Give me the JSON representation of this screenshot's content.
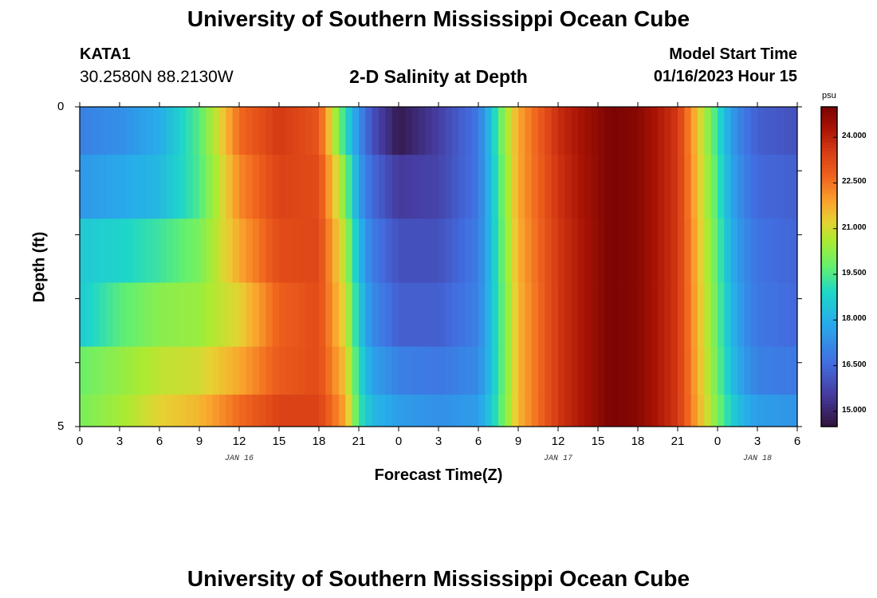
{
  "header": {
    "title": "University of Southern Mississippi Ocean Cube",
    "station_id": "KATA1",
    "coordinates": "30.2580N  88.2130W",
    "subtitle": "2-D Salinity at Depth",
    "model_start_label": "Model Start Time",
    "model_start_value": "01/16/2023 Hour 15"
  },
  "footer": {
    "title": "University of Southern Mississippi Ocean Cube"
  },
  "chart_data": {
    "type": "heatmap",
    "title": "2-D Salinity at Depth",
    "xlabel": "Forecast Time(Z)",
    "ylabel": "Depth (ft)",
    "x_hours_from_jan16_00z": [
      0,
      54
    ],
    "ylim": [
      0,
      5
    ],
    "y_tick_labels": [
      "0",
      "5"
    ],
    "x_tick_labels": [
      "0",
      "3",
      "6",
      "9",
      "12",
      "15",
      "18",
      "21",
      "0",
      "3",
      "6",
      "9",
      "12",
      "15",
      "18",
      "21",
      "0",
      "3",
      "6"
    ],
    "date_labels": [
      {
        "label": "JAN 16",
        "hour": 12
      },
      {
        "label": "JAN 17",
        "hour": 36
      },
      {
        "label": "JAN 18",
        "hour": 51
      }
    ],
    "colorbar": {
      "unit": "psu",
      "range": [
        14.5,
        25.0
      ],
      "tick_values": [
        15.0,
        16.5,
        18.0,
        19.5,
        21.0,
        22.5,
        24.0
      ],
      "tick_labels": [
        "15.000",
        "16.500",
        "18.000",
        "19.500",
        "21.000",
        "22.500",
        "24.000"
      ]
    },
    "depth_layers_ft": [
      0.25,
      1.25,
      2.25,
      3.25,
      4.25,
      4.75
    ],
    "time_knots_hours": [
      0,
      3,
      6,
      9,
      12,
      15,
      18,
      20,
      21,
      22,
      24,
      27,
      30,
      31,
      32,
      33,
      36,
      40,
      42,
      45,
      48,
      49,
      50,
      51,
      54
    ],
    "salinity_psu": [
      [
        17.0,
        17.3,
        17.9,
        19.6,
        22.6,
        23.6,
        23.0,
        19.0,
        17.3,
        16.0,
        14.7,
        15.6,
        16.8,
        18.5,
        20.4,
        21.8,
        23.8,
        25.0,
        24.8,
        23.6,
        19.2,
        17.6,
        16.8,
        16.3,
        16.0
      ],
      [
        17.5,
        17.8,
        18.2,
        19.5,
        22.2,
        23.4,
        23.2,
        20.0,
        17.6,
        16.5,
        15.5,
        15.7,
        16.8,
        18.4,
        20.2,
        21.8,
        23.7,
        25.0,
        24.8,
        23.6,
        19.4,
        17.8,
        17.0,
        16.5,
        16.3
      ],
      [
        18.6,
        18.8,
        19.3,
        20.0,
        21.8,
        23.2,
        23.3,
        20.6,
        18.2,
        16.9,
        16.0,
        16.0,
        16.9,
        18.4,
        20.1,
        21.7,
        23.6,
        25.0,
        24.8,
        23.6,
        19.6,
        18.0,
        17.2,
        16.7,
        16.4
      ],
      [
        18.6,
        19.6,
        20.2,
        20.4,
        21.2,
        22.8,
        23.2,
        21.0,
        18.6,
        17.2,
        16.3,
        16.3,
        17.0,
        18.4,
        20.0,
        21.6,
        23.6,
        25.0,
        24.8,
        23.6,
        19.7,
        18.2,
        17.3,
        16.8,
        16.5
      ],
      [
        19.8,
        20.3,
        20.8,
        21.0,
        21.8,
        22.9,
        23.2,
        21.4,
        19.0,
        17.7,
        17.0,
        16.8,
        17.2,
        18.4,
        20.0,
        21.6,
        23.6,
        25.0,
        24.8,
        23.6,
        19.8,
        18.4,
        17.5,
        17.0,
        16.8
      ],
      [
        20.0,
        20.5,
        21.2,
        21.6,
        22.6,
        23.4,
        23.4,
        21.8,
        19.3,
        18.2,
        17.6,
        17.3,
        17.6,
        18.6,
        20.1,
        21.6,
        23.6,
        25.0,
        24.8,
        23.6,
        20.0,
        18.8,
        18.0,
        17.6,
        17.4
      ]
    ]
  }
}
